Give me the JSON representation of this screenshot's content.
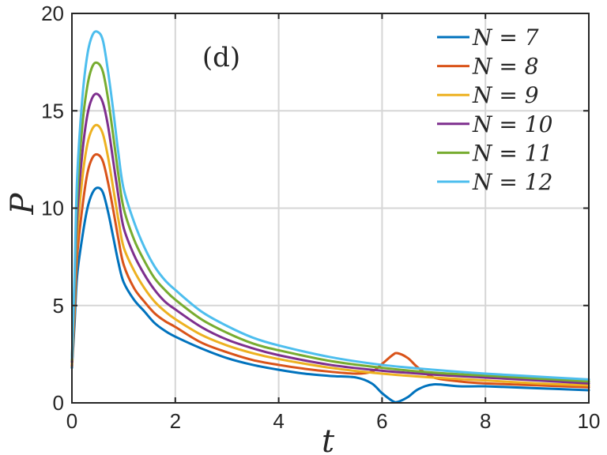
{
  "chart_data": {
    "type": "line",
    "panel_label": "(d)",
    "xlabel": "t",
    "ylabel": "P",
    "xlim": [
      0,
      10
    ],
    "ylim": [
      0,
      20
    ],
    "xticks": [
      0,
      2,
      4,
      6,
      8,
      10
    ],
    "yticks": [
      0,
      5,
      10,
      15,
      20
    ],
    "grid": true,
    "legend_position": "top-right",
    "series": [
      {
        "name": "N = 7",
        "color": "#0072BD",
        "x": [
          0,
          0.05,
          0.1,
          0.2,
          0.3,
          0.4,
          0.5,
          0.6,
          0.7,
          0.8,
          0.9,
          1.0,
          1.2,
          1.4,
          1.6,
          1.8,
          2.0,
          2.5,
          3.0,
          3.5,
          4.0,
          4.5,
          5.0,
          5.5,
          5.8,
          6.0,
          6.2,
          6.3,
          6.5,
          6.7,
          7.0,
          7.5,
          8.0,
          9.0,
          10.0
        ],
        "y": [
          1.8,
          4.0,
          6.5,
          8.5,
          10.0,
          10.8,
          11.05,
          10.8,
          9.8,
          8.5,
          7.2,
          6.2,
          5.3,
          4.7,
          4.1,
          3.7,
          3.4,
          2.8,
          2.3,
          1.95,
          1.7,
          1.5,
          1.38,
          1.3,
          1.0,
          0.5,
          0.1,
          0.05,
          0.3,
          0.7,
          0.95,
          0.85,
          0.85,
          0.75,
          0.65
        ]
      },
      {
        "name": "N = 8",
        "color": "#D95319",
        "x": [
          0,
          0.05,
          0.1,
          0.2,
          0.3,
          0.4,
          0.5,
          0.6,
          0.7,
          0.8,
          0.9,
          1.0,
          1.2,
          1.4,
          1.6,
          1.8,
          2.0,
          2.5,
          3.0,
          3.5,
          4.0,
          4.5,
          5.0,
          5.5,
          5.8,
          6.0,
          6.2,
          6.3,
          6.5,
          6.7,
          7.0,
          7.5,
          8.0,
          9.0,
          10.0
        ],
        "y": [
          1.9,
          4.5,
          7.5,
          10.0,
          11.8,
          12.6,
          12.75,
          12.4,
          11.3,
          9.9,
          8.4,
          7.1,
          5.9,
          5.2,
          4.6,
          4.2,
          3.9,
          3.1,
          2.6,
          2.2,
          1.95,
          1.75,
          1.6,
          1.5,
          1.6,
          2.0,
          2.45,
          2.55,
          2.3,
          1.8,
          1.3,
          1.1,
          1.0,
          0.9,
          0.8
        ]
      },
      {
        "name": "N = 9",
        "color": "#EDB120",
        "x": [
          0,
          0.05,
          0.1,
          0.2,
          0.3,
          0.4,
          0.5,
          0.6,
          0.7,
          0.8,
          0.9,
          1.0,
          1.2,
          1.4,
          1.6,
          1.8,
          2.0,
          2.5,
          3.0,
          3.5,
          4.0,
          5.0,
          6.0,
          7.0,
          8.0,
          9.0,
          10.0
        ],
        "y": [
          2.0,
          5.0,
          8.5,
          11.5,
          13.3,
          14.1,
          14.25,
          13.8,
          12.6,
          11.0,
          9.4,
          8.0,
          6.8,
          5.9,
          5.2,
          4.7,
          4.3,
          3.5,
          2.95,
          2.55,
          2.25,
          1.8,
          1.5,
          1.3,
          1.15,
          1.0,
          0.9
        ]
      },
      {
        "name": "N = 10",
        "color": "#7E2F8E",
        "x": [
          0,
          0.05,
          0.1,
          0.2,
          0.3,
          0.4,
          0.5,
          0.6,
          0.7,
          0.8,
          0.9,
          1.0,
          1.2,
          1.4,
          1.6,
          1.8,
          2.0,
          2.5,
          3.0,
          3.5,
          4.0,
          5.0,
          6.0,
          7.0,
          8.0,
          9.0,
          10.0
        ],
        "y": [
          2.1,
          5.5,
          9.5,
          12.8,
          14.8,
          15.7,
          15.85,
          15.4,
          14.2,
          12.4,
          10.6,
          9.0,
          7.6,
          6.6,
          5.8,
          5.2,
          4.8,
          3.9,
          3.25,
          2.8,
          2.45,
          1.95,
          1.65,
          1.45,
          1.3,
          1.15,
          1.0
        ]
      },
      {
        "name": "N = 11",
        "color": "#77AC30",
        "x": [
          0,
          0.05,
          0.1,
          0.2,
          0.3,
          0.4,
          0.5,
          0.6,
          0.7,
          0.8,
          0.9,
          1.0,
          1.2,
          1.4,
          1.6,
          1.8,
          2.0,
          2.5,
          3.0,
          3.5,
          4.0,
          5.0,
          6.0,
          7.0,
          8.0,
          9.0,
          10.0
        ],
        "y": [
          2.2,
          6.0,
          10.5,
          14.2,
          16.3,
          17.3,
          17.45,
          17.0,
          15.6,
          13.7,
          11.7,
          10.0,
          8.4,
          7.3,
          6.4,
          5.8,
          5.3,
          4.3,
          3.6,
          3.05,
          2.7,
          2.15,
          1.8,
          1.55,
          1.4,
          1.25,
          1.1
        ]
      },
      {
        "name": "N = 12",
        "color": "#4DBEEE",
        "x": [
          0,
          0.05,
          0.1,
          0.2,
          0.3,
          0.4,
          0.5,
          0.6,
          0.7,
          0.8,
          0.9,
          1.0,
          1.2,
          1.4,
          1.6,
          1.8,
          2.0,
          2.5,
          3.0,
          3.5,
          4.0,
          5.0,
          6.0,
          7.0,
          8.0,
          9.0,
          10.0
        ],
        "y": [
          2.3,
          6.5,
          11.5,
          15.6,
          17.9,
          18.9,
          19.05,
          18.6,
          17.0,
          15.0,
          12.8,
          11.0,
          9.3,
          8.0,
          7.0,
          6.3,
          5.8,
          4.7,
          3.95,
          3.35,
          2.95,
          2.35,
          1.95,
          1.7,
          1.5,
          1.35,
          1.2
        ]
      }
    ]
  }
}
